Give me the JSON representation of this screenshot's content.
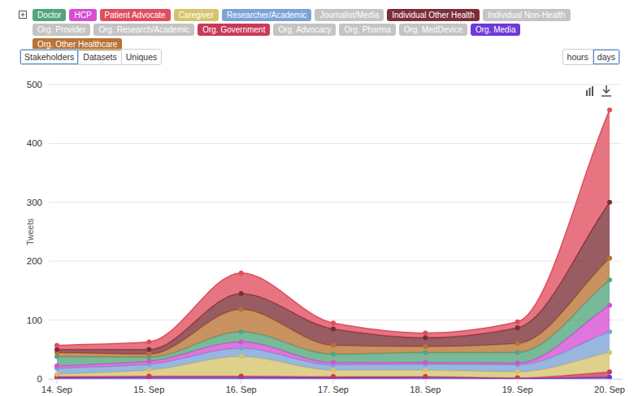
{
  "chart_data": {
    "type": "area",
    "stacked": true,
    "grid": true,
    "legend": "top",
    "y_label": "Tweets",
    "tabs": [
      "Stakeholders",
      "Datasets",
      "Uniques"
    ],
    "intervals": [
      "hours",
      "days"
    ],
    "categories": [
      "14. Sep",
      "15. Sep",
      "16. Sep",
      "17. Sep",
      "18. Sep",
      "19. Sep",
      "20. Sep"
    ],
    "ylim": [
      0,
      500
    ],
    "yticks": [
      0,
      100,
      200,
      300,
      400,
      500
    ],
    "series": [
      {
        "name": "Doctor",
        "color": "#52a57e",
        "values": [
          16,
          7,
          17,
          14,
          17,
          18,
          43
        ]
      },
      {
        "name": "HCP",
        "color": "#d64fd3",
        "values": [
          4,
          5,
          11,
          4,
          3,
          3,
          45
        ]
      },
      {
        "name": "Patient Advocate",
        "color": "#e04d5e",
        "values": [
          7,
          13,
          35,
          10,
          8,
          10,
          157
        ]
      },
      {
        "name": "Caregiver",
        "color": "#d6c36c",
        "values": [
          4,
          10,
          33,
          11,
          11,
          10,
          33
        ]
      },
      {
        "name": "Researcher/Academic",
        "color": "#7aa3d6",
        "values": [
          10,
          10,
          14,
          9,
          10,
          12,
          35
        ]
      },
      {
        "name": "Journalist/Media",
        "color": "#c4c4c4",
        "values": [
          null,
          null,
          null,
          null,
          null,
          null,
          null
        ]
      },
      {
        "name": "Individual Other Health",
        "color": "#7b2e37",
        "values": [
          5,
          8,
          27,
          28,
          15,
          27,
          95
        ]
      },
      {
        "name": "Individual Non-Health",
        "color": "#c4c4c4",
        "values": [
          null,
          null,
          null,
          null,
          null,
          null,
          null
        ]
      },
      {
        "name": "Org. Provider",
        "color": "#c4c4c4",
        "values": [
          null,
          null,
          null,
          null,
          null,
          null,
          null
        ]
      },
      {
        "name": "Org. Research/Academic",
        "color": "#c4c4c4",
        "values": [
          null,
          null,
          null,
          null,
          null,
          null,
          null
        ]
      },
      {
        "name": "Org. Government",
        "color": "#c93a58",
        "values": [
          2,
          2,
          2,
          2,
          1,
          1,
          9
        ]
      },
      {
        "name": "Org. Advocacy",
        "color": "#c4c4c4",
        "values": [
          null,
          null,
          null,
          null,
          null,
          null,
          null
        ]
      },
      {
        "name": "Org. Pharma",
        "color": "#c4c4c4",
        "values": [
          null,
          null,
          null,
          null,
          null,
          null,
          null
        ]
      },
      {
        "name": "Org. MedDevice",
        "color": "#c4c4c4",
        "values": [
          null,
          null,
          null,
          null,
          null,
          null,
          null
        ]
      },
      {
        "name": "Org. Media",
        "color": "#6d3ad8",
        "values": [
          2,
          3,
          3,
          2,
          3,
          1,
          3
        ]
      },
      {
        "name": "Org. Other Healthcare",
        "color": "#b87335",
        "values": [
          7,
          5,
          38,
          15,
          10,
          15,
          37
        ]
      }
    ]
  }
}
